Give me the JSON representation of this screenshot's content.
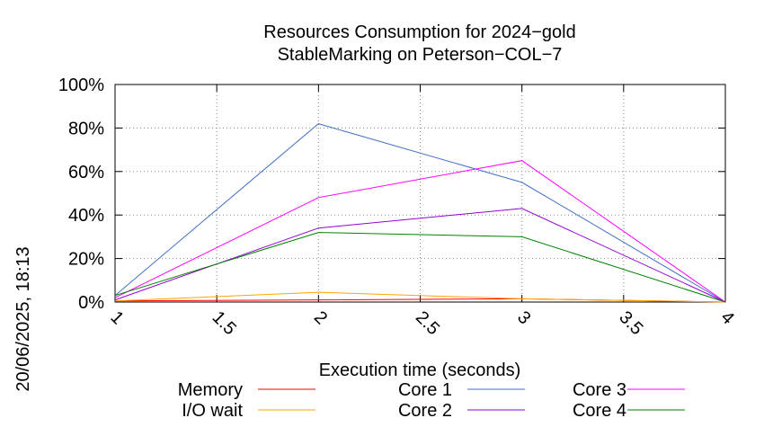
{
  "chart_data": {
    "type": "line",
    "title": "Resources Consumption for 2024−gold",
    "subtitle": "StableMarking on Peterson−COL−7",
    "xlabel": "Execution time (seconds)",
    "ylabel": "",
    "side_label": "20/06/2025, 18:13",
    "xlim": [
      1,
      4
    ],
    "ylim": [
      0,
      100
    ],
    "x_ticks": [
      1,
      1.5,
      2,
      2.5,
      3,
      3.5,
      4
    ],
    "x_tick_labels": [
      "1",
      "1.5",
      "2",
      "2.5",
      "3",
      "3.5",
      "4"
    ],
    "y_ticks": [
      0,
      20,
      40,
      60,
      80,
      100
    ],
    "y_tick_labels": [
      "0%",
      "20%",
      "40%",
      "60%",
      "80%",
      "100%"
    ],
    "grid": true,
    "legend_position": "bottom",
    "series": [
      {
        "name": "Memory",
        "color": "#ff0000",
        "x": [
          1,
          2,
          3,
          4
        ],
        "y": [
          0.5,
          1.0,
          1.5,
          0
        ]
      },
      {
        "name": "I/O wait",
        "color": "#ffa500",
        "x": [
          1,
          2,
          3,
          4
        ],
        "y": [
          0.5,
          4.5,
          1.5,
          0
        ]
      },
      {
        "name": "Core 1",
        "color": "#4472c4",
        "x": [
          1,
          2,
          3,
          4
        ],
        "y": [
          3,
          82,
          55,
          0
        ]
      },
      {
        "name": "Core 2",
        "color": "#9400d3",
        "x": [
          1,
          2,
          3,
          4
        ],
        "y": [
          1,
          34,
          43,
          0
        ]
      },
      {
        "name": "Core 3",
        "color": "#ff00ff",
        "x": [
          1,
          2,
          3,
          4
        ],
        "y": [
          2,
          48,
          65,
          0
        ]
      },
      {
        "name": "Core 4",
        "color": "#008000",
        "x": [
          1,
          2,
          3,
          4
        ],
        "y": [
          3,
          32,
          30,
          0
        ]
      }
    ]
  }
}
